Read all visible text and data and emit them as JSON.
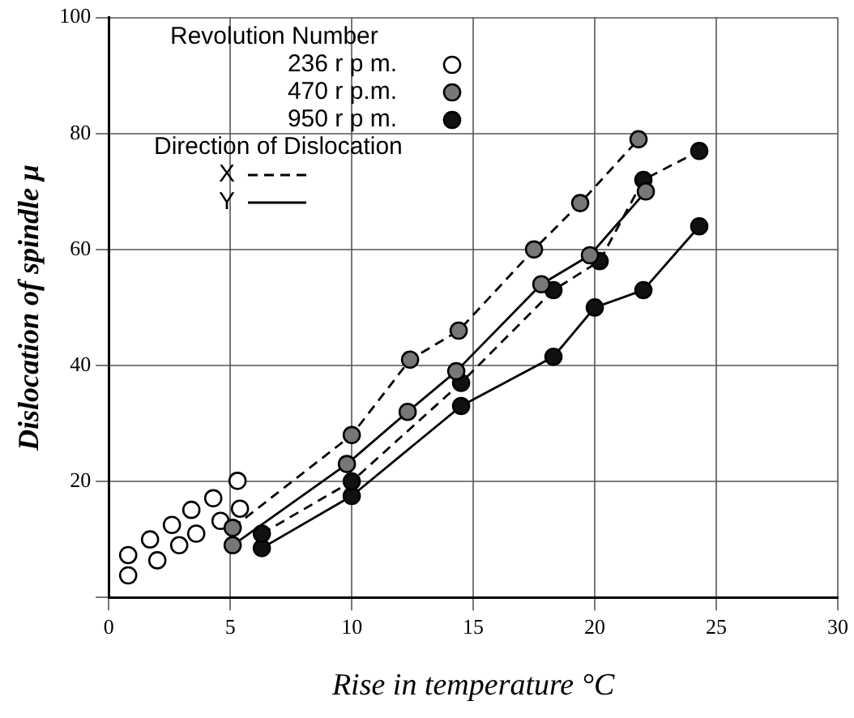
{
  "chart_data": {
    "type": "scatter",
    "xlabel": "Rise in temperature °C",
    "ylabel": "Dislocation of spindle μ",
    "legend_title": "Revolution Number",
    "annotations": [
      "Direction of Dislocation",
      "X",
      "Y"
    ],
    "xlim": [
      0,
      30
    ],
    "xticks": [
      0,
      5,
      10,
      15,
      20,
      25,
      30
    ],
    "ylim": [
      0,
      100
    ],
    "yticks": [
      {
        "value": 0,
        "label": null
      },
      20,
      40,
      60,
      80,
      100
    ],
    "grid": true,
    "legend": "top left",
    "marker": "circle",
    "series": [
      {
        "name": "236 r p m.",
        "type": "scatter",
        "color": "#000000",
        "x": [
          0.8,
          0.8,
          1.7,
          2.0,
          2.6,
          2.9,
          3.4,
          3.6,
          4.3,
          4.6,
          5.3,
          5.4
        ],
        "values": [
          7.3,
          3.8,
          10.0,
          6.4,
          12.5,
          9.0,
          15.1,
          11.0,
          17.1,
          13.2,
          20.1,
          15.3
        ]
      },
      {
        "name": "470 r p.m.",
        "type": "line",
        "line_style": "dashed",
        "color": "#777777",
        "x": [
          5.1,
          10.0,
          12.4,
          14.4,
          17.5,
          19.4,
          21.8
        ],
        "values": [
          12,
          28,
          41,
          46,
          60,
          68,
          79
        ]
      },
      {
        "type": "line",
        "line_style": "solid",
        "color": "#777777",
        "x": [
          5.1,
          9.8,
          12.3,
          14.3,
          17.8,
          19.8,
          22.1
        ],
        "values": [
          9,
          23,
          32,
          39,
          54,
          59,
          70
        ]
      },
      {
        "name": "950 r p m.",
        "type": "line",
        "line_style": "dashed",
        "color": "#111111",
        "x": [
          6.3,
          10.0,
          14.5,
          18.3,
          20.2,
          22.0,
          24.3
        ],
        "values": [
          11,
          20,
          37,
          53,
          58,
          72,
          77
        ]
      },
      {
        "type": "line",
        "line_style": "solid",
        "color": "#111111",
        "x": [
          6.3,
          10.0,
          14.5,
          18.3,
          20.0,
          22.0,
          24.3
        ],
        "values": [
          8.5,
          17.5,
          33,
          41.5,
          50,
          53,
          64
        ]
      }
    ]
  }
}
